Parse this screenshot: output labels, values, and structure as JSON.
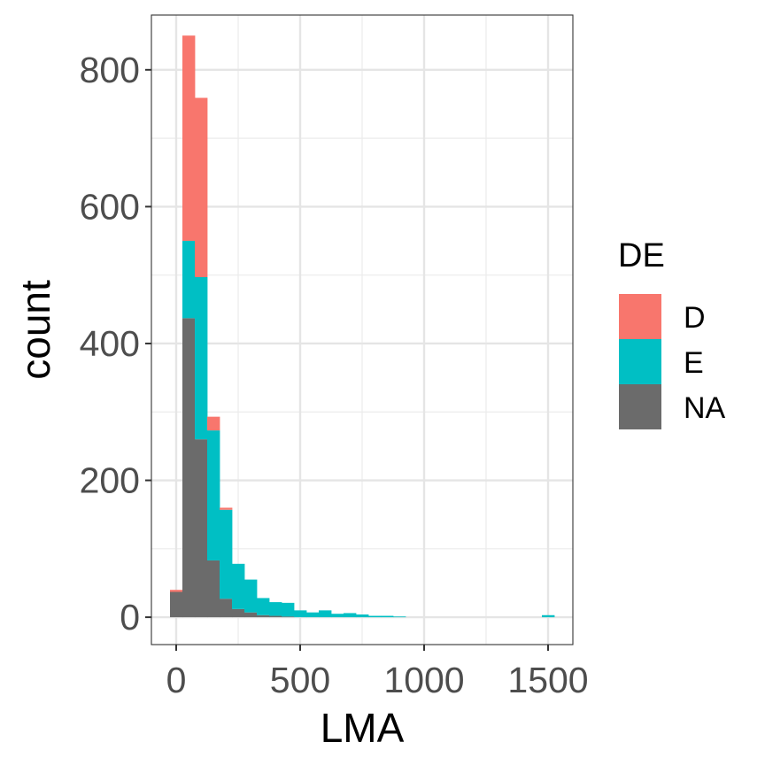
{
  "chart_data": {
    "type": "bar",
    "subtype": "stacked-histogram",
    "xlabel": "LMA",
    "ylabel": "count",
    "xlim": [
      -100,
      1600
    ],
    "ylim": [
      -40,
      880
    ],
    "x_ticks": [
      0,
      500,
      1000,
      1500
    ],
    "y_ticks": [
      0,
      200,
      400,
      600,
      800
    ],
    "x_tick_labels": [
      "0",
      "500",
      "1000",
      "1500"
    ],
    "y_tick_labels": [
      "0",
      "200",
      "400",
      "600",
      "800"
    ],
    "grid": true,
    "bin_width": 50,
    "bin_starts": [
      -25,
      25,
      75,
      125,
      175,
      225,
      275,
      325,
      375,
      425,
      475,
      525,
      575,
      625,
      675,
      725,
      775,
      825,
      875,
      925,
      975,
      1025,
      1075,
      1125,
      1175,
      1225,
      1275,
      1325,
      1375,
      1425,
      1475
    ],
    "stack_order": [
      "NA",
      "E",
      "D"
    ],
    "series": [
      {
        "name": "D",
        "color": "#F8766D",
        "values": [
          3,
          300,
          262,
          20,
          3,
          0,
          0,
          0,
          0,
          0,
          0,
          0,
          0,
          0,
          0,
          0,
          0,
          0,
          0,
          0,
          0,
          0,
          0,
          0,
          0,
          0,
          0,
          0,
          0,
          0,
          0
        ]
      },
      {
        "name": "E",
        "color": "#00BFC4",
        "values": [
          0,
          113,
          237,
          190,
          130,
          66,
          48,
          25,
          20,
          20,
          10,
          7,
          10,
          5,
          6,
          4,
          2,
          2,
          1,
          0,
          0,
          0,
          0,
          0,
          0,
          0,
          0,
          0,
          0,
          0,
          3
        ]
      },
      {
        "name": "NA",
        "color": "#6B6B6B",
        "values": [
          37,
          437,
          260,
          83,
          27,
          12,
          7,
          3,
          2,
          1,
          0,
          0,
          0,
          0,
          0,
          0,
          0,
          0,
          0,
          0,
          0,
          0,
          0,
          0,
          0,
          0,
          0,
          0,
          0,
          0,
          0
        ]
      }
    ],
    "legend": {
      "title": "DE",
      "position": "right",
      "entries": [
        "D",
        "E",
        "NA"
      ]
    }
  }
}
